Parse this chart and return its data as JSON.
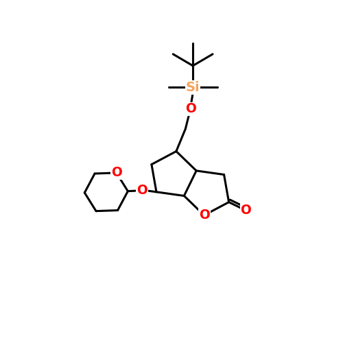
{
  "background": "#ffffff",
  "atom_colors": {
    "C": "#000000",
    "O": "#ff0000",
    "Si": "#f4a460"
  },
  "line_width": 2.2,
  "font_size": 14,
  "fig_size": [
    5.0,
    5.0
  ],
  "dpi": 100
}
